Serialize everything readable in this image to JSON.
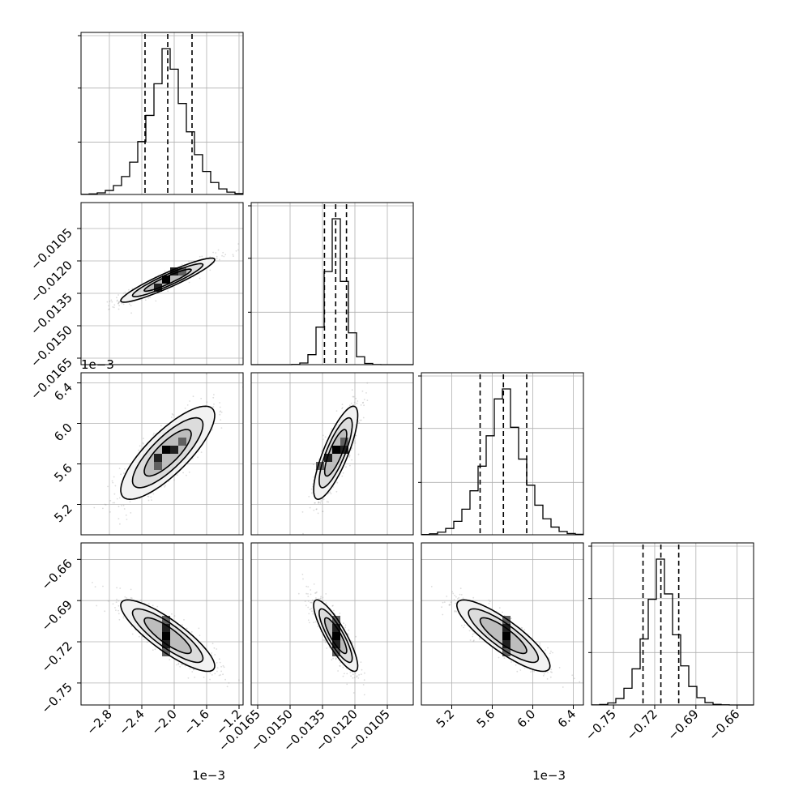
{
  "chart_data": {
    "type": "corner",
    "grid": true,
    "parameters": [
      {
        "index": 0,
        "median": -0.00208,
        "q16": -0.00236,
        "q84": -0.00178,
        "sd": 0.00029,
        "range": [
          -0.00315,
          -0.00115
        ],
        "ticks": [
          -0.0028,
          -0.0024,
          -0.002,
          -0.0016,
          -0.0012
        ],
        "tick_labels": [
          "−2.8",
          "−2.4",
          "−2.0",
          "−1.6",
          "−1.2"
        ],
        "offset_text": "1e−3"
      },
      {
        "index": 1,
        "median": -0.01289,
        "q16": -0.01341,
        "q84": -0.01239,
        "sd": 0.00051,
        "range": [
          -0.0168,
          -0.0093
        ],
        "ticks": [
          -0.0165,
          -0.015,
          -0.0135,
          -0.012,
          -0.0105
        ],
        "tick_labels": [
          "−0.0165",
          "−0.0150",
          "−0.0135",
          "−0.0120",
          "−0.0105"
        ],
        "offset_text": ""
      },
      {
        "index": 2,
        "median": 0.00571,
        "q16": 0.00548,
        "q84": 0.00594,
        "sd": 0.00023,
        "range": [
          0.0049,
          0.0065
        ],
        "ticks": [
          0.0052,
          0.0056,
          0.006,
          0.0064
        ],
        "tick_labels": [
          "5.2",
          "5.6",
          "6.0",
          "6.4"
        ],
        "offset_text": "1e−3"
      },
      {
        "index": 3,
        "median": -0.7155,
        "q16": -0.7285,
        "q84": -0.7025,
        "sd": 0.013,
        "range": [
          -0.766,
          -0.648
        ],
        "ticks": [
          -0.75,
          -0.72,
          -0.69,
          -0.66
        ],
        "tick_labels": [
          "−0.75",
          "−0.72",
          "−0.69",
          "−0.66"
        ],
        "offset_text": ""
      }
    ],
    "correlations": [
      {
        "pair": [
          1,
          0
        ],
        "rho": 0.93
      },
      {
        "pair": [
          2,
          0
        ],
        "rho": 0.8
      },
      {
        "pair": [
          2,
          1
        ],
        "rho": 0.8
      },
      {
        "pair": [
          3,
          0
        ],
        "rho": -0.85
      },
      {
        "pair": [
          3,
          1
        ],
        "rho": -0.85
      },
      {
        "pair": [
          3,
          2
        ],
        "rho": -0.85
      }
    ],
    "contour_sigma_levels": [
      0.5,
      1.0,
      1.5,
      2.0
    ],
    "contour_fill_colors": [
      "#bdbdbd",
      "#dcdcdc",
      "#f2f2f2"
    ],
    "peak_color": "#000000",
    "sample_point_color": "#9a9a9a",
    "histogram_bins": 20
  }
}
